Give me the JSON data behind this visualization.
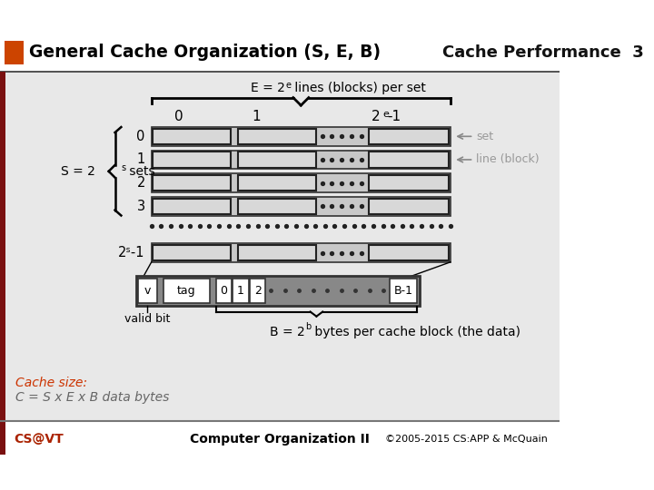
{
  "title_left": "General Cache Organization (S, E, B)",
  "title_right": "Cache Performance  3",
  "title_bg": "#cc4400",
  "slide_bg": "#d8d8d8",
  "content_bg": "#e8e8e8",
  "row_bg": "#cccccc",
  "block_bg": "#c0c0c0",
  "detail_outer_bg": "#888888",
  "detail_inner_bg": "#f0f0f0",
  "footer_left": "CS@VT",
  "footer_center": "Computer Organization II",
  "footer_right": "©2005-2015 CS:APP & McQuain",
  "footer_fg": "#aa2200",
  "left_bar_color": "#7a1010",
  "cache_size_label": "Cache size:",
  "cache_size_formula": "C = S x E x B data bytes"
}
